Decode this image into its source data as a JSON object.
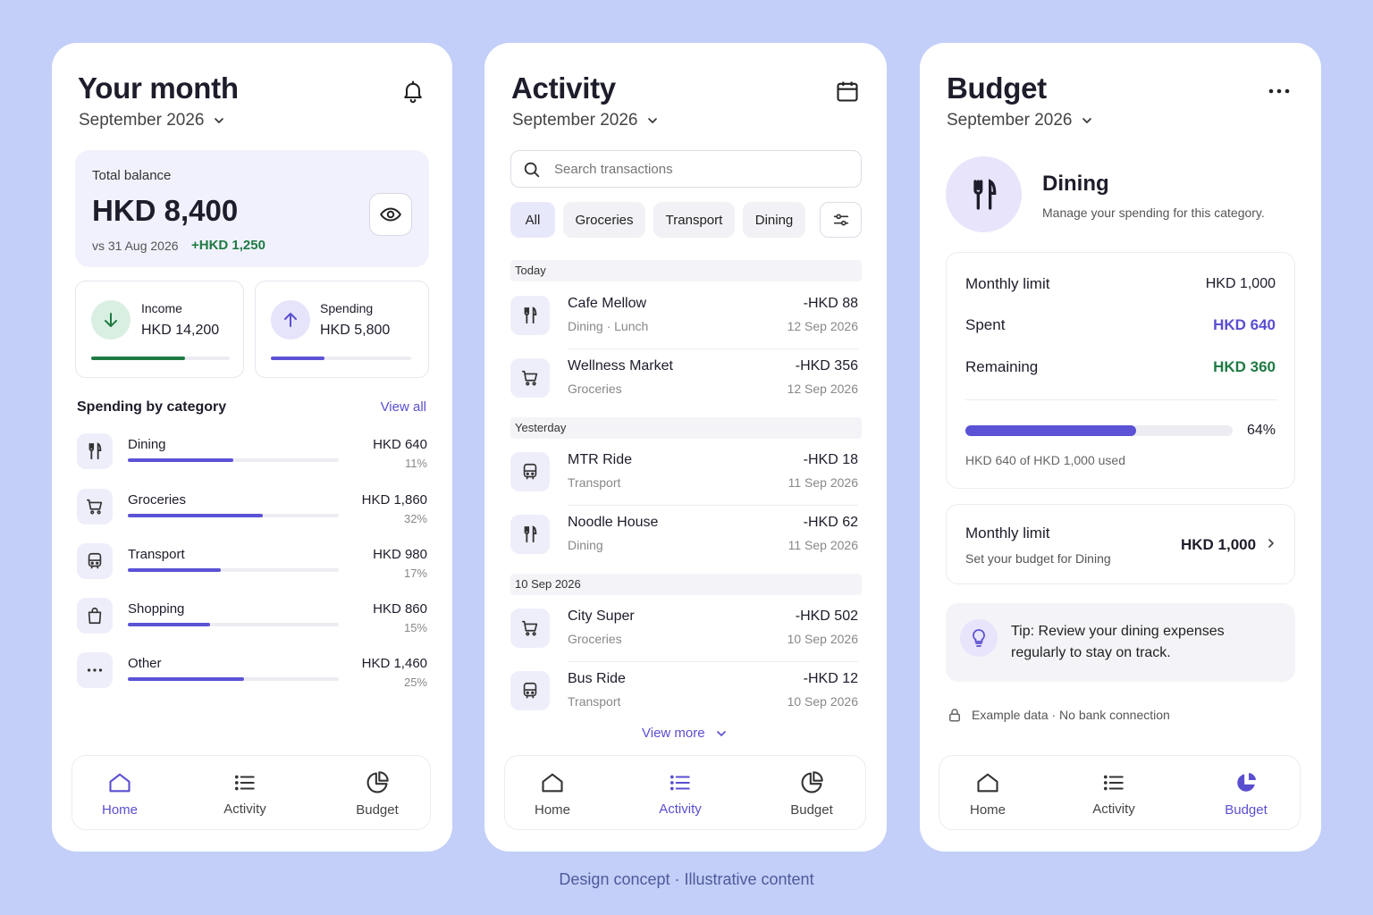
{
  "home": {
    "title": "Your month",
    "month": "September 2026",
    "balance": {
      "label": "Total balance",
      "amount": "HKD 8,400",
      "compare": "vs 31 Aug 2026",
      "delta": "+HKD 1,250"
    },
    "income": {
      "label": "Income",
      "amount": "HKD 14,200",
      "progress": 0.68
    },
    "spending": {
      "label": "Spending",
      "amount": "HKD 5,800",
      "progress": 0.38
    },
    "categories_title": "Spending by category",
    "view_all": "View all",
    "categories": [
      {
        "icon": "fork-knife-icon",
        "label": "Dining",
        "amount": "HKD 640",
        "percent": "11%",
        "progress": 0.5
      },
      {
        "icon": "cart-icon",
        "label": "Groceries",
        "amount": "HKD 1,860",
        "percent": "32%",
        "progress": 0.64
      },
      {
        "icon": "bus-icon",
        "label": "Transport",
        "amount": "HKD 980",
        "percent": "17%",
        "progress": 0.44
      },
      {
        "icon": "bag-icon",
        "label": "Shopping",
        "amount": "HKD 860",
        "percent": "15%",
        "progress": 0.39
      },
      {
        "icon": "more-icon",
        "label": "Other",
        "amount": "HKD 1,460",
        "percent": "25%",
        "progress": 0.55
      }
    ]
  },
  "activity": {
    "title": "Activity",
    "month": "September 2026",
    "search_placeholder": "Search transactions",
    "chips": [
      "All",
      "Groceries",
      "Transport",
      "Dining"
    ],
    "sections": [
      "Today",
      "Yesterday",
      "10 Sep 2026"
    ],
    "transactions": [
      {
        "icon": "fork-knife-icon",
        "name": "Cafe Mellow",
        "sub": "Dining · Lunch",
        "amount": "-HKD 88",
        "date": "12 Sep 2026"
      },
      {
        "icon": "cart-icon",
        "name": "Wellness Market",
        "sub": "Groceries",
        "amount": "-HKD 356",
        "date": "12 Sep 2026"
      },
      {
        "icon": "train-icon",
        "name": "MTR Ride",
        "sub": "Transport",
        "amount": "-HKD 18",
        "date": "11 Sep 2026"
      },
      {
        "icon": "fork-knife-icon",
        "name": "Noodle House",
        "sub": "Dining",
        "amount": "-HKD 62",
        "date": "11 Sep 2026"
      },
      {
        "icon": "cart-icon",
        "name": "City Super",
        "sub": "Groceries",
        "amount": "-HKD 502",
        "date": "10 Sep 2026"
      },
      {
        "icon": "bus-icon",
        "name": "Bus Ride",
        "sub": "Transport",
        "amount": "-HKD 12",
        "date": "10 Sep 2026"
      }
    ],
    "view_more": "View more"
  },
  "budget": {
    "title": "Budget",
    "month": "September 2026",
    "category": "Dining",
    "category_desc": "Manage your spending for this category.",
    "limit_label": "Monthly limit",
    "limit_value": "HKD 1,000",
    "spent_label": "Spent",
    "spent_value": "HKD 640",
    "remaining_label": "Remaining",
    "remaining_value": "HKD 360",
    "progress": 0.64,
    "progress_text": "64%",
    "used_text": "HKD 640 of HKD 1,000 used",
    "limit_row_title": "Monthly limit",
    "limit_row_sub": "Set your budget for Dining",
    "limit_row_value": "HKD 1,000",
    "tip": "Tip: Review your dining expenses regularly to stay on track.",
    "footnote": "Example data · No bank connection"
  },
  "nav": {
    "home": "Home",
    "activity": "Activity",
    "budget": "Budget"
  },
  "caption": "Design concept · Illustrative content",
  "colors": {
    "background": "#c3cff8",
    "accent": "#5a4fcf",
    "positive": "#1f7a43",
    "card": "#ffffff"
  }
}
